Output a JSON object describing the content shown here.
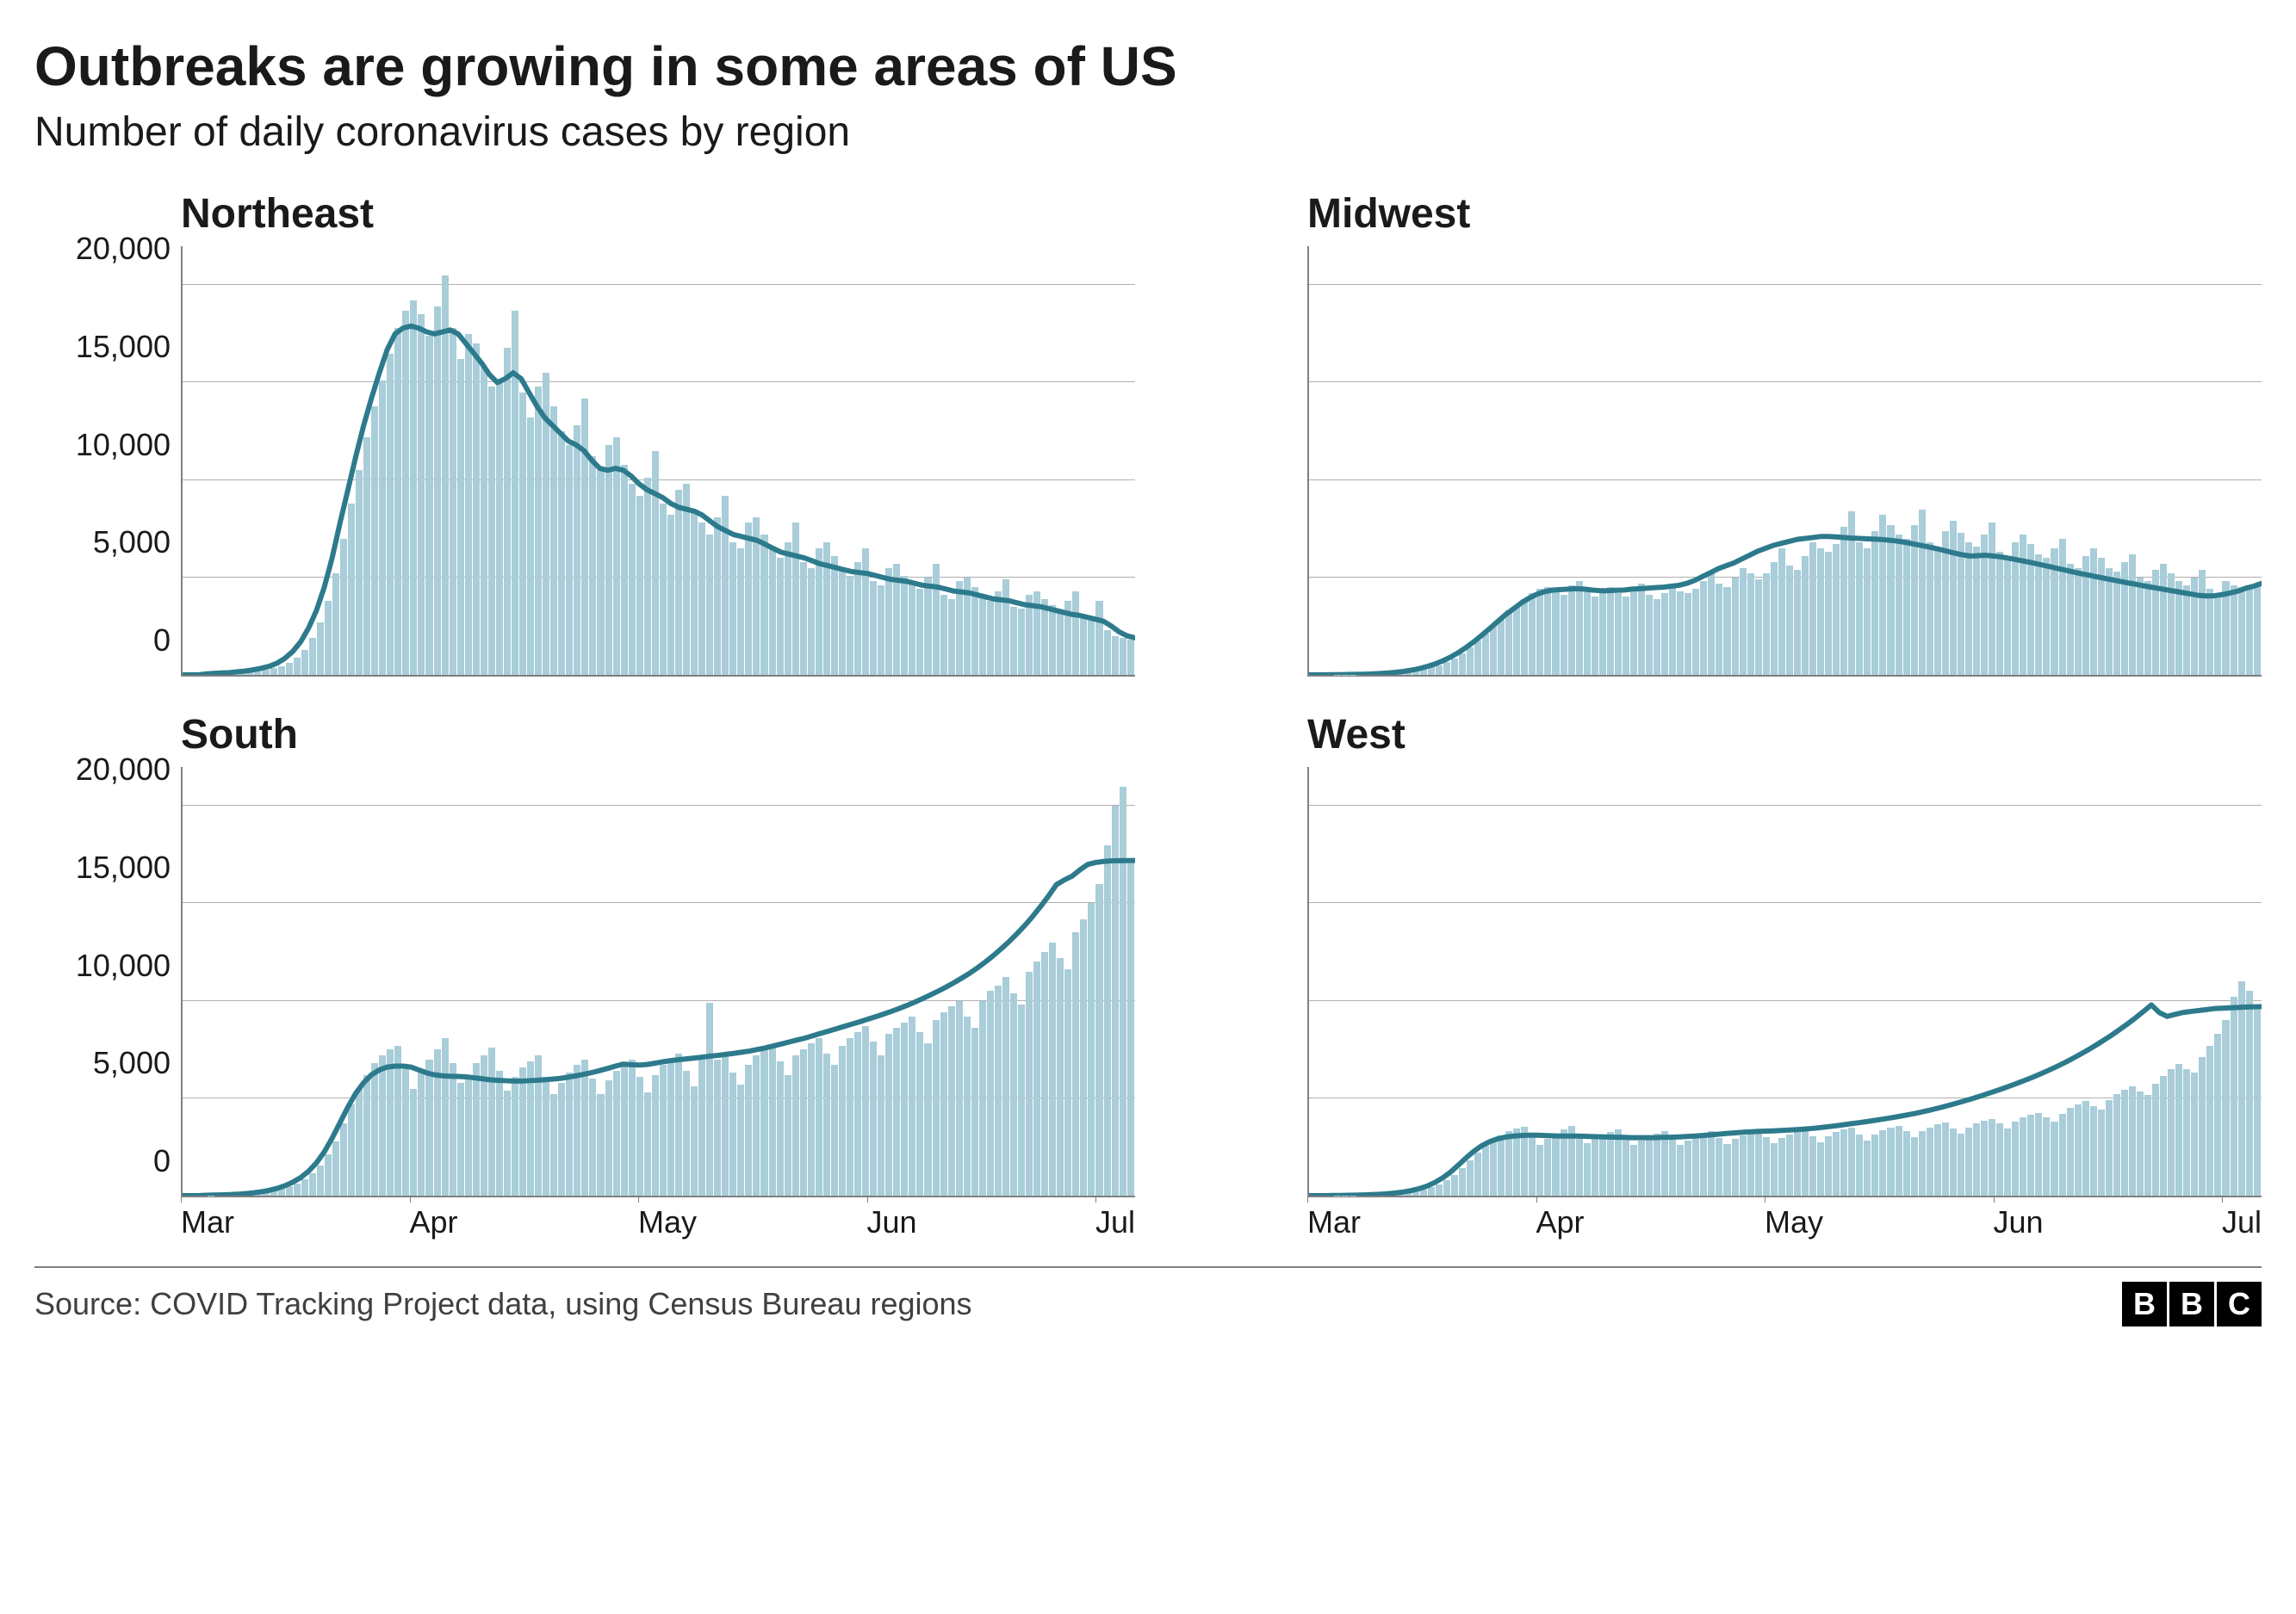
{
  "title": "Outbreaks are growing in some areas of US",
  "subtitle": "Number of daily coronavirus cases by region",
  "source": "Source: COVID Tracking Project data, using Census Bureau regions",
  "logo_letters": [
    "B",
    "B",
    "C"
  ],
  "shared": {
    "ylim": [
      0,
      22000
    ],
    "yticks": [
      0,
      5000,
      10000,
      15000,
      20000
    ],
    "ytick_labels": [
      "0",
      "5,000",
      "10,000",
      "15,000",
      "20,000"
    ],
    "xtick_labels": [
      "Mar",
      "Apr",
      "May",
      "Jun",
      "Jul"
    ],
    "bar_color": "#a9cdd9",
    "line_color": "#2d7a8c",
    "line_width": 6,
    "grid_color": "#b0b0b0",
    "axis_color": "#808080",
    "background_color": "#ffffff",
    "title_fontsize": 64,
    "subtitle_fontsize": 48,
    "panel_title_fontsize": 48,
    "tick_fontsize": 36,
    "source_fontsize": 36
  },
  "panels": [
    {
      "title": "Northeast",
      "show_yticks": true,
      "show_xticks": false,
      "bars": [
        0,
        0,
        0,
        50,
        80,
        100,
        120,
        150,
        180,
        220,
        280,
        350,
        450,
        600,
        900,
        1300,
        1900,
        2700,
        3800,
        5200,
        7000,
        8800,
        10500,
        12200,
        13800,
        15100,
        16500,
        17800,
        18700,
        19200,
        18500,
        17400,
        18900,
        20500,
        17800,
        16200,
        17500,
        17000,
        15800,
        14800,
        15200,
        16800,
        18700,
        14500,
        13200,
        14800,
        15500,
        13800,
        12500,
        11800,
        12800,
        14200,
        11200,
        10500,
        11800,
        12200,
        10800,
        9800,
        9200,
        10100,
        11500,
        8800,
        8200,
        9500,
        9800,
        8500,
        7800,
        7200,
        8100,
        9200,
        6800,
        6500,
        7800,
        8100,
        7200,
        6500,
        6000,
        6800,
        7800,
        5800,
        5500,
        6500,
        6800,
        6100,
        5500,
        5100,
        5800,
        6500,
        4800,
        4600,
        5500,
        5700,
        5100,
        4700,
        4400,
        5000,
        5700,
        4100,
        3900,
        4800,
        5000,
        4500,
        4100,
        3800,
        4300,
        4900,
        3500,
        3400,
        4100,
        4300,
        3900,
        3600,
        3300,
        3800,
        4300,
        3100,
        3000,
        3800,
        2300,
        2000,
        1900,
        1800
      ],
      "line": [
        0,
        0,
        0,
        50,
        80,
        100,
        120,
        160,
        200,
        260,
        340,
        440,
        600,
        850,
        1200,
        1700,
        2400,
        3300,
        4500,
        6000,
        7800,
        9500,
        11200,
        12800,
        14200,
        15500,
        16700,
        17500,
        17800,
        17900,
        17800,
        17600,
        17500,
        17600,
        17700,
        17500,
        17000,
        16500,
        16000,
        15400,
        15000,
        15200,
        15500,
        15200,
        14500,
        13800,
        13200,
        12800,
        12400,
        12000,
        11800,
        11500,
        11000,
        10600,
        10500,
        10600,
        10500,
        10200,
        9800,
        9500,
        9300,
        9100,
        8800,
        8600,
        8500,
        8400,
        8200,
        7900,
        7600,
        7400,
        7200,
        7100,
        7000,
        6900,
        6700,
        6500,
        6300,
        6200,
        6100,
        6000,
        5850,
        5700,
        5600,
        5500,
        5400,
        5300,
        5250,
        5200,
        5100,
        5000,
        4900,
        4850,
        4800,
        4700,
        4600,
        4550,
        4500,
        4400,
        4300,
        4250,
        4200,
        4100,
        4000,
        3900,
        3850,
        3800,
        3700,
        3600,
        3550,
        3500,
        3400,
        3300,
        3200,
        3100,
        3050,
        2950,
        2850,
        2750,
        2500,
        2200,
        2000,
        1900
      ]
    },
    {
      "title": "Midwest",
      "show_yticks": false,
      "show_xticks": false,
      "bars": [
        0,
        0,
        0,
        10,
        15,
        20,
        25,
        35,
        45,
        60,
        80,
        110,
        150,
        200,
        280,
        380,
        500,
        650,
        850,
        1100,
        1400,
        1750,
        2100,
        2500,
        2900,
        3300,
        3600,
        3900,
        4200,
        4400,
        4500,
        4300,
        4100,
        4600,
        4800,
        4300,
        4000,
        4300,
        4500,
        4200,
        4000,
        4300,
        4700,
        4100,
        3900,
        4200,
        4500,
        4300,
        4200,
        4400,
        4800,
        5300,
        4700,
        4500,
        5000,
        5500,
        5200,
        4900,
        5200,
        5800,
        6500,
        5600,
        5400,
        6100,
        6800,
        6500,
        6300,
        6700,
        7600,
        8400,
        6800,
        6500,
        7400,
        8200,
        7700,
        7200,
        7000,
        7700,
        8500,
        6800,
        6500,
        7400,
        7900,
        7300,
        6800,
        6600,
        7200,
        7800,
        6300,
        6100,
        6800,
        7200,
        6700,
        6200,
        6000,
        6500,
        7000,
        5700,
        5500,
        6100,
        6500,
        6000,
        5500,
        5300,
        5800,
        6200,
        5000,
        4800,
        5400,
        5700,
        5200,
        4800,
        4600,
        5000,
        5400,
        4400,
        4200,
        4800,
        4600,
        4500,
        4400,
        4700
      ],
      "line": [
        0,
        0,
        0,
        10,
        15,
        20,
        25,
        35,
        50,
        70,
        95,
        130,
        175,
        240,
        320,
        430,
        560,
        720,
        920,
        1150,
        1420,
        1720,
        2050,
        2400,
        2750,
        3100,
        3400,
        3700,
        3950,
        4150,
        4280,
        4350,
        4380,
        4400,
        4420,
        4400,
        4350,
        4320,
        4320,
        4340,
        4350,
        4400,
        4420,
        4450,
        4480,
        4500,
        4550,
        4600,
        4700,
        4850,
        5050,
        5250,
        5450,
        5600,
        5750,
        5950,
        6150,
        6350,
        6500,
        6650,
        6750,
        6850,
        6950,
        7000,
        7050,
        7100,
        7100,
        7080,
        7050,
        7020,
        7000,
        6980,
        6960,
        6940,
        6900,
        6850,
        6780,
        6700,
        6620,
        6540,
        6450,
        6350,
        6250,
        6160,
        6100,
        6120,
        6140,
        6100,
        6050,
        5980,
        5900,
        5820,
        5740,
        5650,
        5560,
        5470,
        5380,
        5290,
        5200,
        5120,
        5040,
        4960,
        4880,
        4800,
        4720,
        4650,
        4570,
        4500,
        4430,
        4360,
        4290,
        4220,
        4150,
        4080,
        4050,
        4060,
        4120,
        4200,
        4300,
        4450,
        4550,
        4700
      ]
    },
    {
      "title": "South",
      "show_yticks": true,
      "show_xticks": true,
      "bars": [
        0,
        0,
        0,
        20,
        30,
        40,
        55,
        75,
        100,
        140,
        190,
        260,
        350,
        470,
        630,
        850,
        1150,
        1550,
        2100,
        2800,
        3700,
        4700,
        5500,
        6200,
        6800,
        7200,
        7500,
        7700,
        6500,
        5500,
        6300,
        7000,
        7500,
        8100,
        6800,
        5800,
        6200,
        6800,
        7200,
        7600,
        6400,
        5400,
        6100,
        6600,
        6900,
        7200,
        6100,
        5200,
        5800,
        6300,
        6700,
        7000,
        6000,
        5200,
        5900,
        6400,
        6700,
        7000,
        6100,
        5300,
        6200,
        6700,
        7000,
        7300,
        6400,
        5600,
        7200,
        9900,
        7000,
        7200,
        6300,
        5700,
        6700,
        7200,
        7500,
        7700,
        6900,
        6200,
        7200,
        7500,
        7800,
        8100,
        7300,
        6700,
        7700,
        8100,
        8400,
        8700,
        7900,
        7200,
        8300,
        8600,
        8900,
        9200,
        8400,
        7800,
        9000,
        9400,
        9700,
        10000,
        9200,
        8600,
        10000,
        10500,
        10800,
        11200,
        10400,
        9800,
        11500,
        12000,
        12500,
        13000,
        12200,
        11600,
        13500,
        14200,
        15000,
        16000,
        18000,
        20000,
        21000,
        17200
      ],
      "line": [
        0,
        0,
        0,
        20,
        30,
        40,
        55,
        75,
        105,
        145,
        200,
        275,
        375,
        510,
        690,
        930,
        1250,
        1680,
        2250,
        2950,
        3750,
        4550,
        5250,
        5800,
        6200,
        6450,
        6600,
        6650,
        6650,
        6600,
        6450,
        6300,
        6200,
        6150,
        6130,
        6120,
        6100,
        6050,
        6000,
        5950,
        5920,
        5900,
        5880,
        5880,
        5900,
        5920,
        5950,
        5980,
        6020,
        6080,
        6150,
        6230,
        6320,
        6420,
        6530,
        6650,
        6750,
        6720,
        6700,
        6730,
        6800,
        6870,
        6930,
        6980,
        7020,
        7060,
        7110,
        7160,
        7200,
        7250,
        7300,
        7360,
        7420,
        7500,
        7580,
        7680,
        7780,
        7880,
        7980,
        8080,
        8200,
        8320,
        8440,
        8560,
        8680,
        8800,
        8920,
        9050,
        9180,
        9310,
        9450,
        9600,
        9760,
        9930,
        10110,
        10300,
        10500,
        10710,
        10930,
        11170,
        11420,
        11700,
        12000,
        12320,
        12670,
        13040,
        13440,
        13870,
        14340,
        14840,
        15380,
        15960,
        16200,
        16400,
        16720,
        17000,
        17100,
        17150,
        17180,
        17190,
        17195,
        17200
      ]
    },
    {
      "title": "West",
      "show_yticks": false,
      "show_xticks": true,
      "bars": [
        0,
        0,
        0,
        10,
        15,
        20,
        28,
        38,
        52,
        70,
        95,
        130,
        175,
        235,
        320,
        430,
        580,
        780,
        1050,
        1400,
        1800,
        2200,
        2550,
        2850,
        3100,
        3300,
        3450,
        3550,
        3050,
        2600,
        2900,
        3200,
        3400,
        3600,
        3100,
        2700,
        2900,
        3100,
        3250,
        3400,
        2950,
        2600,
        2850,
        3050,
        3200,
        3300,
        2900,
        2600,
        2850,
        3050,
        3200,
        3300,
        2950,
        2650,
        2900,
        3100,
        3250,
        3350,
        3000,
        2700,
        2950,
        3150,
        3300,
        3400,
        3050,
        2750,
        3050,
        3250,
        3400,
        3500,
        3150,
        2850,
        3150,
        3350,
        3500,
        3600,
        3300,
        3000,
        3300,
        3500,
        3650,
        3750,
        3450,
        3200,
        3500,
        3700,
        3850,
        3950,
        3700,
        3450,
        3800,
        4000,
        4150,
        4250,
        4000,
        3800,
        4200,
        4500,
        4700,
        4850,
        4600,
        4400,
        4900,
        5200,
        5450,
        5600,
        5350,
        5150,
        5750,
        6150,
        6500,
        6750,
        6500,
        6300,
        7100,
        7700,
        8300,
        9000,
        10200,
        11000,
        10500,
        9700
      ],
      "line": [
        0,
        0,
        0,
        10,
        15,
        20,
        28,
        38,
        52,
        72,
        100,
        138,
        190,
        262,
        360,
        495,
        680,
        920,
        1220,
        1580,
        1960,
        2300,
        2580,
        2780,
        2920,
        3010,
        3060,
        3090,
        3100,
        3100,
        3090,
        3070,
        3060,
        3060,
        3060,
        3050,
        3030,
        3020,
        3010,
        3000,
        2990,
        2980,
        2975,
        2975,
        2980,
        2990,
        3000,
        3015,
        3035,
        3060,
        3090,
        3120,
        3155,
        3190,
        3220,
        3250,
        3275,
        3295,
        3312,
        3328,
        3345,
        3365,
        3390,
        3420,
        3455,
        3495,
        3540,
        3590,
        3645,
        3700,
        3755,
        3810,
        3870,
        3935,
        4000,
        4070,
        4145,
        4225,
        4310,
        4400,
        4500,
        4605,
        4715,
        4830,
        4950,
        5075,
        5205,
        5340,
        5480,
        5625,
        5775,
        5930,
        6090,
        6260,
        6440,
        6630,
        6830,
        7040,
        7260,
        7490,
        7730,
        7985,
        8250,
        8530,
        8820,
        9130,
        9450,
        9790,
        9400,
        9200,
        9300,
        9400,
        9450,
        9500,
        9550,
        9600,
        9620,
        9640,
        9660,
        9680,
        9690,
        9700
      ]
    }
  ]
}
